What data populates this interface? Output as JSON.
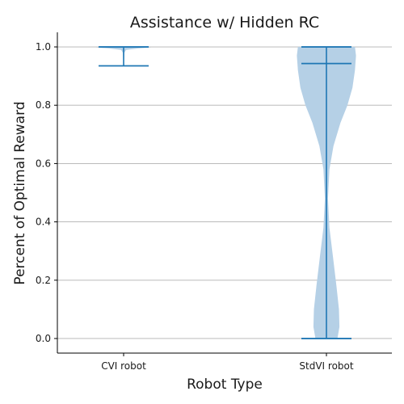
{
  "chart_data": {
    "type": "violin",
    "title": "Assistance w/ Hidden RC",
    "xlabel": "Robot Type",
    "ylabel": "Percent of Optimal Reward",
    "categories": [
      "CVI robot",
      "StdVI robot"
    ],
    "ylim": [
      -0.05,
      1.05
    ],
    "yticks": [
      "0.0",
      "0.2",
      "0.4",
      "0.6",
      "0.8",
      "1.0"
    ],
    "grid": "horizontal",
    "colors": {
      "body": "#b5d0e6",
      "line": "#1f77b4"
    },
    "violins": [
      {
        "category": "CVI robot",
        "min": 0.935,
        "max": 1.0,
        "median": 0.99,
        "density": [
          [
            0.935,
            0.0
          ],
          [
            0.96,
            0.01
          ],
          [
            0.98,
            0.015
          ],
          [
            0.99,
            0.05
          ],
          [
            0.995,
            0.3
          ],
          [
            0.998,
            0.55
          ],
          [
            1.0,
            0.25
          ]
        ]
      },
      {
        "category": "StdVI robot",
        "min": 0.0,
        "max": 1.0,
        "median": 0.943,
        "density": [
          [
            0.0,
            0.22
          ],
          [
            0.04,
            0.26
          ],
          [
            0.1,
            0.25
          ],
          [
            0.18,
            0.2
          ],
          [
            0.28,
            0.13
          ],
          [
            0.38,
            0.06
          ],
          [
            0.48,
            0.03
          ],
          [
            0.58,
            0.06
          ],
          [
            0.66,
            0.14
          ],
          [
            0.74,
            0.28
          ],
          [
            0.8,
            0.42
          ],
          [
            0.86,
            0.52
          ],
          [
            0.92,
            0.57
          ],
          [
            0.97,
            0.59
          ],
          [
            1.0,
            0.57
          ]
        ]
      }
    ]
  }
}
